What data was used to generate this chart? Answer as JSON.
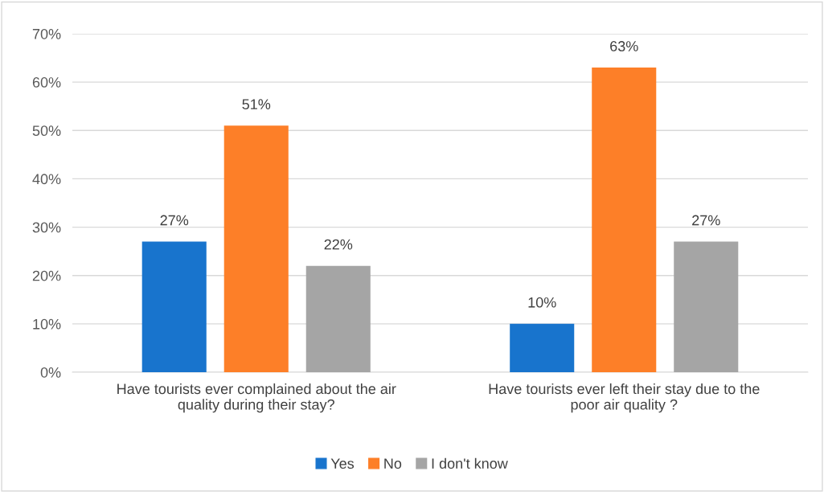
{
  "chart_data": {
    "type": "bar",
    "categories": [
      "Have tourists ever complained about the air\nquality during their stay?",
      "Have tourists ever left their stay due to the\npoor air quality ?"
    ],
    "series": [
      {
        "name": "Yes",
        "color": "#1874cd",
        "values": [
          27,
          10
        ],
        "value_labels": [
          "27%",
          "10%"
        ]
      },
      {
        "name": "No",
        "color": "#fd7f28",
        "values": [
          51,
          63
        ],
        "value_labels": [
          "51%",
          "63%"
        ]
      },
      {
        "name": "I don't know",
        "color": "#a5a5a5",
        "values": [
          22,
          27
        ],
        "value_labels": [
          "22%",
          "27%"
        ]
      }
    ],
    "ylim": [
      0,
      70
    ],
    "yticks": [
      {
        "value": 0,
        "label": "0%"
      },
      {
        "value": 10,
        "label": "10%"
      },
      {
        "value": 20,
        "label": "20%"
      },
      {
        "value": 30,
        "label": "30%"
      },
      {
        "value": 40,
        "label": "40%"
      },
      {
        "value": 50,
        "label": "50%"
      },
      {
        "value": 60,
        "label": "60%"
      },
      {
        "value": 70,
        "label": "70%"
      }
    ],
    "grid": "y",
    "legend": "bottom"
  }
}
